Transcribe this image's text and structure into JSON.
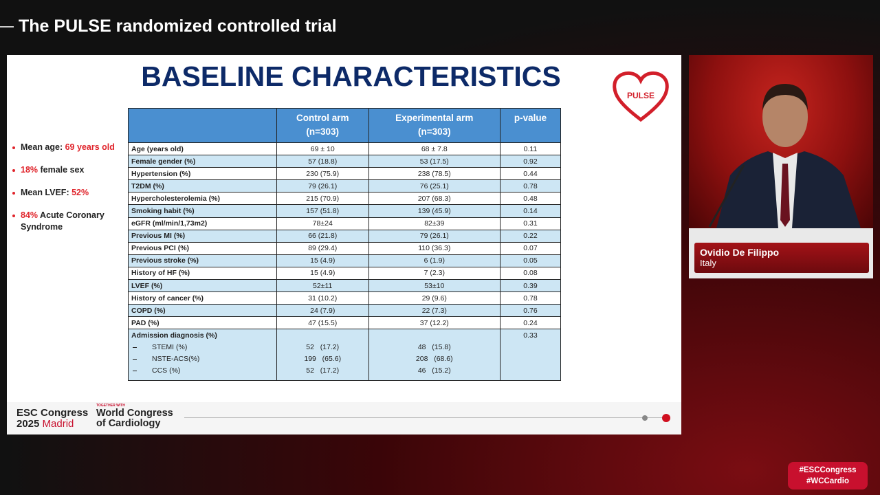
{
  "header": {
    "title": "The PULSE randomized controlled trial"
  },
  "slide": {
    "title": "BASELINE CHARACTERISTICS",
    "logo": "PULSE",
    "bullets": [
      [
        {
          "text": "Mean age: "
        },
        {
          "text": "69 years old",
          "em": true
        }
      ],
      [
        {
          "text": "18%",
          "em": true
        },
        {
          "text": " female sex"
        }
      ],
      [
        {
          "text": "Mean LVEF: "
        },
        {
          "text": "52%",
          "em": true
        }
      ],
      [
        {
          "text": "84%",
          "em": true
        },
        {
          "text": " Acute Coronary Syndrome"
        }
      ]
    ],
    "table": {
      "columns": [
        {
          "name": "Control arm",
          "n": "(n=303)"
        },
        {
          "name": "Experimental arm",
          "n": "(n=303)"
        },
        {
          "name": "p-value"
        }
      ],
      "rows": [
        [
          "Age (years old)",
          "69 ± 10",
          "68 ± 7.8",
          "0.11"
        ],
        [
          "Female gender (%)",
          "57 (18.8)",
          "53 (17.5)",
          "0.92"
        ],
        [
          "Hypertension (%)",
          "230 (75.9)",
          "238 (78.5)",
          "0.44"
        ],
        [
          "T2DM (%)",
          "79 (26.1)",
          "76 (25.1)",
          "0.78"
        ],
        [
          "Hypercholesterolemia (%)",
          "215 (70.9)",
          "207 (68.3)",
          "0.48"
        ],
        [
          "Smoking habit (%)",
          "157 (51.8)",
          "139 (45.9)",
          "0.14"
        ],
        [
          "eGFR (ml/min/1,73m2)",
          "78±24",
          "82±39",
          "0.31"
        ],
        [
          "Previous MI (%)",
          "66 (21.8)",
          "79 (26.1)",
          "0.22"
        ],
        [
          "Previous PCI (%)",
          "89 (29.4)",
          "110 (36.3)",
          "0.07"
        ],
        [
          "Previous stroke (%)",
          "15 (4.9)",
          "6 (1.9)",
          "0.05"
        ],
        [
          "History of HF (%)",
          "15 (4.9)",
          "7 (2.3)",
          "0.08"
        ],
        [
          "LVEF (%)",
          "52±11",
          "53±10",
          "0.39"
        ],
        [
          "History of cancer (%)",
          "31 (10.2)",
          "29 (9.6)",
          "0.78"
        ],
        [
          "COPD (%)",
          "24 (7.9)",
          "22 (7.3)",
          "0.76"
        ],
        [
          "PAD (%)",
          "47 (15.5)",
          "37 (12.2)",
          "0.24"
        ]
      ],
      "group": {
        "label": "Admission diagnosis (%)",
        "p": "0.33",
        "subrows": [
          [
            "STEMI (%)",
            "52   (17.2)",
            "48   (15.8)"
          ],
          [
            "NSTE-ACS(%)",
            "199   (65.6)",
            "208   (68.6)"
          ],
          [
            "CCS (%)",
            "52   (17.2)",
            "46   (15.2)"
          ]
        ]
      }
    },
    "footer": {
      "esc": "ESC Congress",
      "year": "2025",
      "city": "Madrid",
      "together": "TOGETHER WITH",
      "wc1": "World Congress",
      "wc2": "of Cardiology"
    }
  },
  "speaker": {
    "name": "Ovidio De Filippo",
    "country": "Italy"
  },
  "hashtags": [
    "#ESCCongress",
    "#WCCardio"
  ]
}
